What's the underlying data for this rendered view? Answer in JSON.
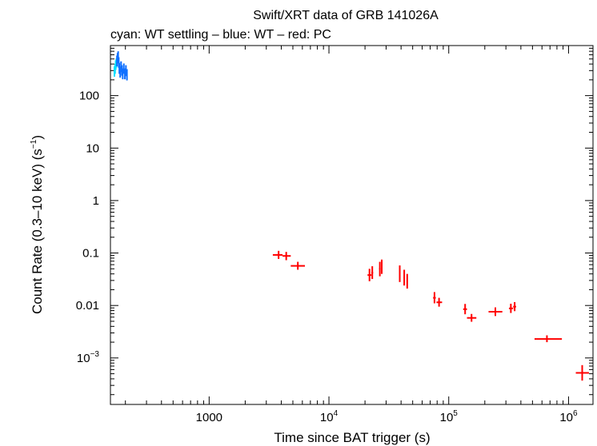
{
  "chart_data": {
    "type": "scatter",
    "title": "Swift/XRT data of GRB 141026A",
    "subtitle": "cyan: WT settling – blue: WT – red: PC",
    "xlabel": "Time since BAT trigger (s)",
    "ylabel_main": "Count Rate (0.3–10 keV) (s",
    "ylabel_sup": "−1",
    "ylabel_close": ")",
    "xscale": "log",
    "yscale": "log",
    "xlim": [
      150,
      1600000
    ],
    "ylim": [
      0.00013,
      900
    ],
    "xticks": [
      {
        "value": 1000,
        "base": "1000",
        "exp": ""
      },
      {
        "value": 10000,
        "base": "10",
        "exp": "4"
      },
      {
        "value": 100000,
        "base": "10",
        "exp": "5"
      },
      {
        "value": 1000000,
        "base": "10",
        "exp": "6"
      }
    ],
    "yticks": [
      {
        "value": 100,
        "base": "100",
        "exp": ""
      },
      {
        "value": 10,
        "base": "10",
        "exp": ""
      },
      {
        "value": 1,
        "base": "1",
        "exp": ""
      },
      {
        "value": 0.1,
        "base": "0.1",
        "exp": ""
      },
      {
        "value": 0.01,
        "base": "0.01",
        "exp": ""
      },
      {
        "value": 0.001,
        "base": "10",
        "exp": "−3"
      }
    ],
    "series": [
      {
        "color": "#00e0ff",
        "points": [
          {
            "x": 162,
            "y": 290,
            "xlo": 161,
            "xhi": 163,
            "ylo": 230,
            "yhi": 360
          },
          {
            "x": 164,
            "y": 320,
            "xlo": 163,
            "xhi": 165,
            "ylo": 260,
            "yhi": 400
          },
          {
            "x": 166,
            "y": 380,
            "xlo": 165,
            "xhi": 167,
            "ylo": 310,
            "yhi": 470
          },
          {
            "x": 168,
            "y": 420,
            "xlo": 167,
            "xhi": 169,
            "ylo": 340,
            "yhi": 510
          }
        ]
      },
      {
        "color": "#1070ff",
        "points": [
          {
            "x": 170,
            "y": 460,
            "xlo": 169,
            "xhi": 171,
            "ylo": 360,
            "yhi": 580
          },
          {
            "x": 172,
            "y": 520,
            "xlo": 171,
            "xhi": 173,
            "ylo": 410,
            "yhi": 650
          },
          {
            "x": 174,
            "y": 560,
            "xlo": 173,
            "xhi": 175,
            "ylo": 440,
            "yhi": 700
          },
          {
            "x": 176,
            "y": 430,
            "xlo": 175,
            "xhi": 177,
            "ylo": 340,
            "yhi": 540
          },
          {
            "x": 178,
            "y": 330,
            "xlo": 177,
            "xhi": 179,
            "ylo": 260,
            "yhi": 420
          },
          {
            "x": 181,
            "y": 280,
            "xlo": 180,
            "xhi": 182,
            "ylo": 220,
            "yhi": 360
          },
          {
            "x": 184,
            "y": 360,
            "xlo": 183,
            "xhi": 185,
            "ylo": 280,
            "yhi": 450
          },
          {
            "x": 187,
            "y": 300,
            "xlo": 186,
            "xhi": 188,
            "ylo": 240,
            "yhi": 380
          },
          {
            "x": 190,
            "y": 260,
            "xlo": 189,
            "xhi": 191,
            "ylo": 205,
            "yhi": 330
          },
          {
            "x": 194,
            "y": 330,
            "xlo": 193,
            "xhi": 195,
            "ylo": 260,
            "yhi": 410
          },
          {
            "x": 198,
            "y": 260,
            "xlo": 197,
            "xhi": 199,
            "ylo": 205,
            "yhi": 330
          },
          {
            "x": 202,
            "y": 300,
            "xlo": 201,
            "xhi": 203,
            "ylo": 235,
            "yhi": 380
          },
          {
            "x": 206,
            "y": 250,
            "xlo": 205,
            "xhi": 207,
            "ylo": 195,
            "yhi": 320
          }
        ]
      },
      {
        "color": "#ff0000",
        "points": [
          {
            "x": 3800,
            "y": 0.092,
            "xlo": 3400,
            "xhi": 4100,
            "ylo": 0.077,
            "yhi": 0.11
          },
          {
            "x": 4400,
            "y": 0.088,
            "xlo": 4100,
            "xhi": 4800,
            "ylo": 0.073,
            "yhi": 0.105
          },
          {
            "x": 5500,
            "y": 0.057,
            "xlo": 4800,
            "xhi": 6300,
            "ylo": 0.048,
            "yhi": 0.068
          },
          {
            "x": 21800,
            "y": 0.038,
            "xlo": 21000,
            "xhi": 22600,
            "ylo": 0.029,
            "yhi": 0.05
          },
          {
            "x": 23000,
            "y": 0.042,
            "xlo": 22600,
            "xhi": 23400,
            "ylo": 0.032,
            "yhi": 0.056
          },
          {
            "x": 26600,
            "y": 0.05,
            "xlo": 26200,
            "xhi": 27000,
            "ylo": 0.036,
            "yhi": 0.068
          },
          {
            "x": 27600,
            "y": 0.055,
            "xlo": 27200,
            "xhi": 28000,
            "ylo": 0.04,
            "yhi": 0.075
          },
          {
            "x": 39000,
            "y": 0.04,
            "xlo": 38600,
            "xhi": 39400,
            "ylo": 0.028,
            "yhi": 0.058
          },
          {
            "x": 42500,
            "y": 0.034,
            "xlo": 42000,
            "xhi": 43000,
            "ylo": 0.024,
            "yhi": 0.048
          },
          {
            "x": 45000,
            "y": 0.029,
            "xlo": 44500,
            "xhi": 45500,
            "ylo": 0.021,
            "yhi": 0.04
          },
          {
            "x": 76000,
            "y": 0.014,
            "xlo": 74000,
            "xhi": 78000,
            "ylo": 0.011,
            "yhi": 0.018
          },
          {
            "x": 83000,
            "y": 0.0115,
            "xlo": 79000,
            "xhi": 88000,
            "ylo": 0.0095,
            "yhi": 0.014
          },
          {
            "x": 137000,
            "y": 0.0085,
            "xlo": 132000,
            "xhi": 142000,
            "ylo": 0.0068,
            "yhi": 0.0107
          },
          {
            "x": 155000,
            "y": 0.0058,
            "xlo": 142000,
            "xhi": 170000,
            "ylo": 0.0049,
            "yhi": 0.0069
          },
          {
            "x": 245000,
            "y": 0.0076,
            "xlo": 215000,
            "xhi": 280000,
            "ylo": 0.0063,
            "yhi": 0.0092
          },
          {
            "x": 330000,
            "y": 0.0088,
            "xlo": 318000,
            "xhi": 345000,
            "ylo": 0.0072,
            "yhi": 0.0108
          },
          {
            "x": 355000,
            "y": 0.0095,
            "xlo": 345000,
            "xhi": 365000,
            "ylo": 0.0078,
            "yhi": 0.0116
          },
          {
            "x": 660000,
            "y": 0.0023,
            "xlo": 520000,
            "xhi": 880000,
            "ylo": 0.002,
            "yhi": 0.0027
          },
          {
            "x": 1300000,
            "y": 0.00052,
            "xlo": 1150000,
            "xhi": 1480000,
            "ylo": 0.00037,
            "yhi": 0.00073
          }
        ]
      }
    ]
  }
}
